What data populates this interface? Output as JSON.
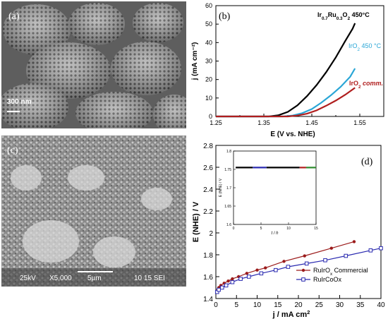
{
  "panels": {
    "a": {
      "letter": "(a)",
      "scale_bar": "300 nm"
    },
    "b": {
      "letter": "(b)"
    },
    "c": {
      "letter": "(c)",
      "info": {
        "kv": "25kV",
        "mag": "X5,000",
        "scale": "5μm",
        "misc": "10 15 SEI"
      }
    },
    "d": {
      "letter": "(d)",
      "inset": {
        "ylabel": "E (NHE) / V",
        "xlabel": "t / h",
        "yticks": [
          "1.8",
          "1.75",
          "1.7",
          "1.65",
          "1.6"
        ],
        "xticks": [
          "0",
          "5",
          "10",
          "15"
        ]
      }
    }
  },
  "colors": {
    "sem_gray": "#6f6f6f",
    "b_black": "#000000",
    "b_cyan": "#2aa6d6",
    "b_red": "#b01e1e",
    "d_red": "#9b1b1b",
    "d_blue": "#2a2ab0"
  },
  "chart_data": [
    {
      "type": "line",
      "panel": "b",
      "xlabel": "E (V vs. NHE)",
      "ylabel": "j (mA cm⁻²)",
      "xlim": [
        1.25,
        1.6
      ],
      "ylim": [
        0,
        60
      ],
      "xticks": [
        1.25,
        1.35,
        1.45,
        1.55
      ],
      "yticks": [
        0,
        10,
        20,
        30,
        40,
        50,
        60
      ],
      "series": [
        {
          "name": "Ir₀.₇Ru₀.₃O₂ 450°C",
          "label_base": "Ir",
          "label_sub1": "0.7",
          "label_mid": "Ru",
          "label_sub2": "0.3",
          "label_end": "O",
          "label_sub3": "2",
          "label_tail": " 450°C",
          "color": "#000000",
          "x": [
            1.25,
            1.36,
            1.38,
            1.4,
            1.42,
            1.44,
            1.46,
            1.48,
            1.5,
            1.52,
            1.535,
            1.54
          ],
          "y": [
            0,
            0,
            0.6,
            2.5,
            6.0,
            11.0,
            17.0,
            24.0,
            32.0,
            41.0,
            47.5,
            50.5
          ]
        },
        {
          "name": "IrO₂ 450 °C",
          "label_base": "IrO",
          "label_sub": "2",
          "label_tail": " 450 °C",
          "color": "#2aa6d6",
          "x": [
            1.25,
            1.39,
            1.41,
            1.43,
            1.45,
            1.47,
            1.49,
            1.51,
            1.53,
            1.54
          ],
          "y": [
            0,
            0,
            0.5,
            1.8,
            4.0,
            7.5,
            11.5,
            16.0,
            21.5,
            26.0
          ]
        },
        {
          "name": "IrO₂ comm.",
          "label_base": "IrO",
          "label_sub": "2",
          "label_tail": " comm.",
          "color": "#b01e1e",
          "x": [
            1.25,
            1.4,
            1.42,
            1.44,
            1.46,
            1.48,
            1.5,
            1.52,
            1.54
          ],
          "y": [
            0,
            0,
            0.5,
            1.5,
            3.3,
            5.8,
            8.6,
            11.8,
            15.5
          ]
        }
      ]
    },
    {
      "type": "line",
      "panel": "d",
      "xlabel_base": "j / mA cm",
      "xlabel_sup": "2",
      "ylabel": "E (NHE) / V",
      "xlim": [
        0,
        40
      ],
      "ylim": [
        1.4,
        2.8
      ],
      "xticks": [
        0,
        5,
        10,
        15,
        20,
        25,
        30,
        35,
        40
      ],
      "yticks": [
        1.4,
        1.6,
        1.8,
        2.0,
        2.2,
        2.4,
        2.6,
        2.8
      ],
      "ytick_labels": [
        "1.4",
        "1.6",
        "1.8",
        "2",
        "2.2",
        "2.4",
        "2.6",
        "2.8"
      ],
      "series": [
        {
          "name": "RuIrOx Commercial",
          "label_base": "RuIrO",
          "label_sub": "x",
          "label_tail": " Commercial",
          "marker": "filled-circle",
          "color": "#9b1b1b",
          "x": [
            0.3,
            0.7,
            1.2,
            2.0,
            3.0,
            4.0,
            5.5,
            7.5,
            10.0,
            12.0,
            16.5,
            21.5,
            28.0,
            33.5
          ],
          "y": [
            1.47,
            1.5,
            1.52,
            1.54,
            1.56,
            1.58,
            1.6,
            1.63,
            1.66,
            1.68,
            1.74,
            1.79,
            1.86,
            1.92
          ]
        },
        {
          "name": "RuIrCoOx",
          "label_base": "RuIrCoOx",
          "marker": "open-square",
          "color": "#2a2ab0",
          "x": [
            0.3,
            0.7,
            1.5,
            2.5,
            4.0,
            6.0,
            8.0,
            11.0,
            14.5,
            17.5,
            22.0,
            26.5,
            31.5,
            37.5,
            40.0
          ],
          "y": [
            1.46,
            1.48,
            1.5,
            1.52,
            1.55,
            1.58,
            1.6,
            1.63,
            1.66,
            1.69,
            1.72,
            1.75,
            1.79,
            1.84,
            1.86
          ]
        }
      ]
    }
  ]
}
